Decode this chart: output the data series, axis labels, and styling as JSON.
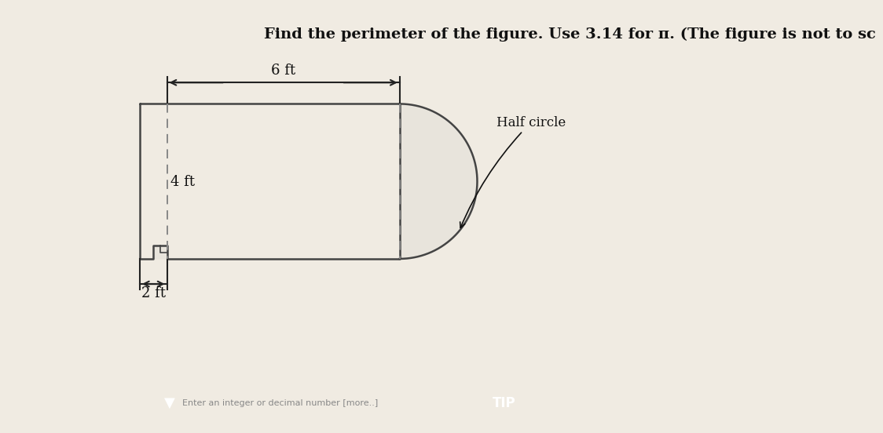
{
  "title": "Find the perimeter of the figure. Use 3.14 for π. (The figure is not to sc",
  "title_fontsize": 14,
  "bg_color": "#f0ebe2",
  "left_bar_color": "#c8c4bc",
  "shape_fill": "#e8e4dc",
  "shape_edge": "#444444",
  "dash_color": "#888888",
  "arrow_color": "#222222",
  "text_color": "#111111",
  "label_6ft": "6 ft",
  "label_4ft": "4 ft",
  "label_2ft": "2 ft",
  "label_half_circle": "Half circle",
  "bottom_bar_color": "#c8c0b4",
  "input_text": "Enter an integer or decimal number [more..]",
  "teal_color": "#2aafa0",
  "tip_color": "#a09070"
}
